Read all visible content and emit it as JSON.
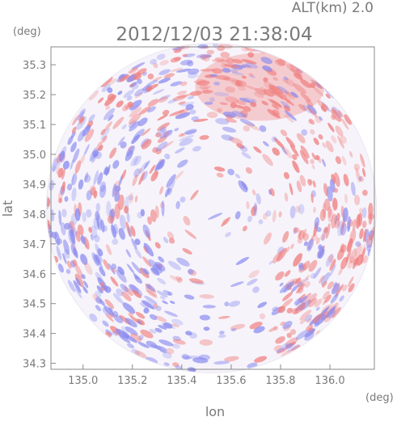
{
  "chart_data": {
    "type": "heatmap",
    "title": "2012/12/03 21:38:04",
    "altitude_label": "ALT(km)  2.0",
    "xlabel": "lon",
    "ylabel": "lat",
    "x_unit": "(deg)",
    "y_unit": "(deg)",
    "xlim": [
      134.87,
      136.18
    ],
    "ylim": [
      34.28,
      35.36
    ],
    "x_ticks": [
      "135.0",
      "135.2",
      "135.4",
      "135.6",
      "135.8",
      "136.0"
    ],
    "y_ticks": [
      "34.3",
      "34.4",
      "34.5",
      "34.6",
      "34.7",
      "34.8",
      "34.9",
      "35.0",
      "35.1",
      "35.2",
      "35.3"
    ],
    "radar_center": {
      "lon": 135.52,
      "lat": 34.82
    },
    "positive_color": "#f08080",
    "negative_color": "#8c8cf0",
    "grid": false,
    "legend": "none"
  }
}
